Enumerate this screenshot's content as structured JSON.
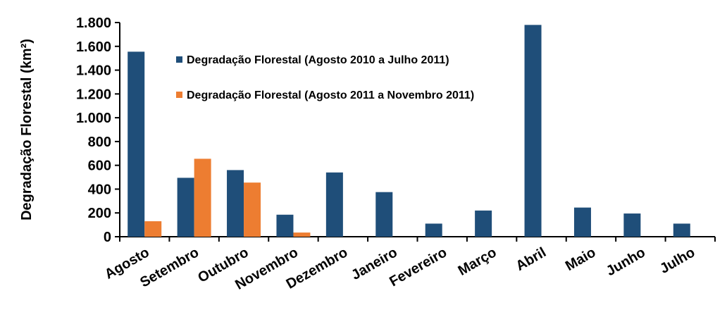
{
  "chart_data": {
    "type": "bar",
    "title": "",
    "xlabel": "",
    "ylabel": "Degradação Florestal (km²)",
    "ylim": [
      0,
      1800
    ],
    "yticks": [
      0,
      200,
      400,
      600,
      800,
      1000,
      1200,
      1400,
      1600,
      1800
    ],
    "ytick_labels": [
      "0",
      "200",
      "400",
      "600",
      "800",
      "1.000",
      "1.200",
      "1.400",
      "1.600",
      "1.800"
    ],
    "grid": false,
    "legend_position": "top-center",
    "categories": [
      "Agosto",
      "Setembro",
      "Outubro",
      "Novembro",
      "Dezembro",
      "Janeiro",
      "Fevereiro",
      "Março",
      "Abril",
      "Maio",
      "Junho",
      "Julho"
    ],
    "series": [
      {
        "name": "Degradação Florestal (Agosto 2010 a Julho 2011)",
        "color": "#1F4E79",
        "values": [
          1555,
          495,
          560,
          185,
          540,
          375,
          110,
          220,
          1780,
          245,
          195,
          110
        ]
      },
      {
        "name": "Degradação Florestal (Agosto 2011 a Novembro 2011)",
        "color": "#ED7D31",
        "values": [
          130,
          655,
          455,
          35,
          null,
          null,
          null,
          null,
          null,
          null,
          null,
          null
        ]
      }
    ]
  }
}
